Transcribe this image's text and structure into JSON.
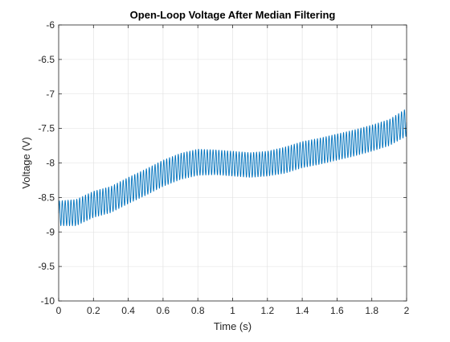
{
  "chart_data": {
    "type": "line",
    "title": "Open-Loop Voltage After Median Filtering",
    "xlabel": "Time (s)",
    "ylabel": "Voltage (V)",
    "xlim": [
      0,
      2
    ],
    "ylim": [
      -10,
      -6
    ],
    "xticks": [
      0,
      0.2,
      0.4,
      0.6,
      0.8,
      1,
      1.2,
      1.4,
      1.6,
      1.8,
      2
    ],
    "xtick_labels": [
      "0",
      "0.2",
      "0.4",
      "0.6",
      "0.8",
      "1",
      "1.2",
      "1.4",
      "1.6",
      "1.8",
      "2"
    ],
    "yticks": [
      -10,
      -9.5,
      -9,
      -8.5,
      -8,
      -7.5,
      -7,
      -6.5,
      -6
    ],
    "ytick_labels": [
      "-10",
      "-9.5",
      "-9",
      "-8.5",
      "-8",
      "-7.5",
      "-7",
      "-6.5",
      "-6"
    ],
    "grid": true,
    "line_color": "#0072BD",
    "oscillation_frequency_hz": 60,
    "series": [
      {
        "envelope": {
          "x": [
            0,
            0.1,
            0.2,
            0.3,
            0.4,
            0.5,
            0.6,
            0.7,
            0.8,
            0.9,
            1.0,
            1.1,
            1.2,
            1.3,
            1.4,
            1.5,
            1.6,
            1.7,
            1.8,
            1.9,
            2.0
          ],
          "center": [
            -8.73,
            -8.72,
            -8.6,
            -8.53,
            -8.4,
            -8.28,
            -8.15,
            -8.05,
            -7.99,
            -7.99,
            -8.01,
            -8.03,
            -8.01,
            -7.96,
            -7.88,
            -7.83,
            -7.77,
            -7.71,
            -7.64,
            -7.56,
            -7.41
          ],
          "half_amplitude": [
            0.18,
            0.19,
            0.19,
            0.19,
            0.19,
            0.19,
            0.19,
            0.19,
            0.19,
            0.18,
            0.18,
            0.18,
            0.18,
            0.19,
            0.19,
            0.19,
            0.19,
            0.19,
            0.19,
            0.19,
            0.2
          ]
        }
      }
    ]
  }
}
